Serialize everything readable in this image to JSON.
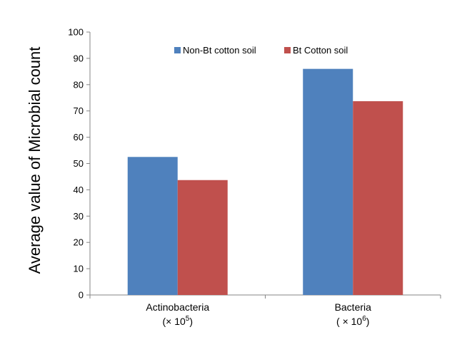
{
  "chart_data": {
    "type": "bar",
    "title": "",
    "xlabel": "",
    "ylabel": "Average value of Microbial count",
    "categories": [
      "Actinobacteria",
      "Bacteria"
    ],
    "category_units": [
      {
        "base": "(× 10",
        "exp": "5",
        "close": ")"
      },
      {
        "base": "( × 10",
        "exp": "6",
        "close": ")"
      }
    ],
    "series": [
      {
        "name": "Non-Bt cotton soil",
        "color": "#4f81bd",
        "values": [
          52.5,
          86
        ]
      },
      {
        "name": "Bt Cotton soil",
        "color": "#c0504d",
        "values": [
          43.7,
          73.7
        ]
      }
    ],
    "ylim": [
      0,
      100
    ],
    "yticks": [
      0,
      10,
      20,
      30,
      40,
      50,
      60,
      70,
      80,
      90,
      100
    ],
    "grid": false,
    "legend_position": "top"
  }
}
